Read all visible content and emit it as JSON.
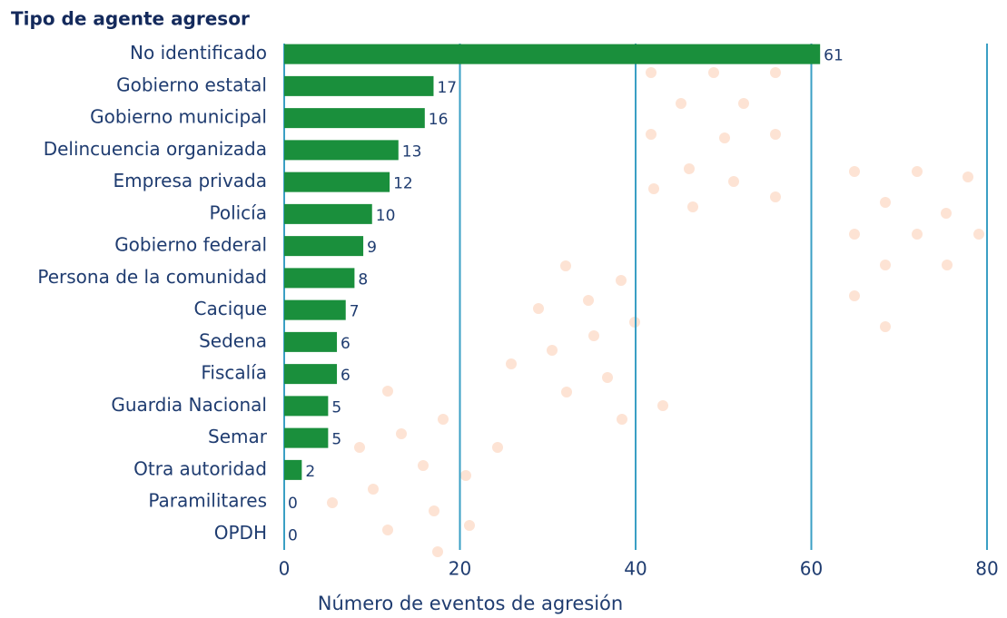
{
  "chart_data": {
    "type": "barh",
    "y_label": "Tipo de agente agresor",
    "x_label": "Número de eventos de agresión",
    "categories": [
      "No identificado",
      "Gobierno estatal",
      "Gobierno municipal",
      "Delincuencia organizada",
      "Empresa privada",
      "Policía",
      "Gobierno federal",
      "Persona de la comunidad",
      "Cacique",
      "Sedena",
      "Fiscalía",
      "Guardia Nacional",
      "Semar",
      "Otra autoridad",
      "Paramilitares",
      "OPDH"
    ],
    "values": [
      61,
      17,
      16,
      13,
      12,
      10,
      9,
      8,
      7,
      6,
      6,
      5,
      5,
      2,
      0,
      0
    ],
    "color": "#1a8f3c",
    "xlim": [
      0,
      80
    ],
    "xticks": [
      0,
      20,
      40,
      60,
      80
    ],
    "grid": true
  }
}
